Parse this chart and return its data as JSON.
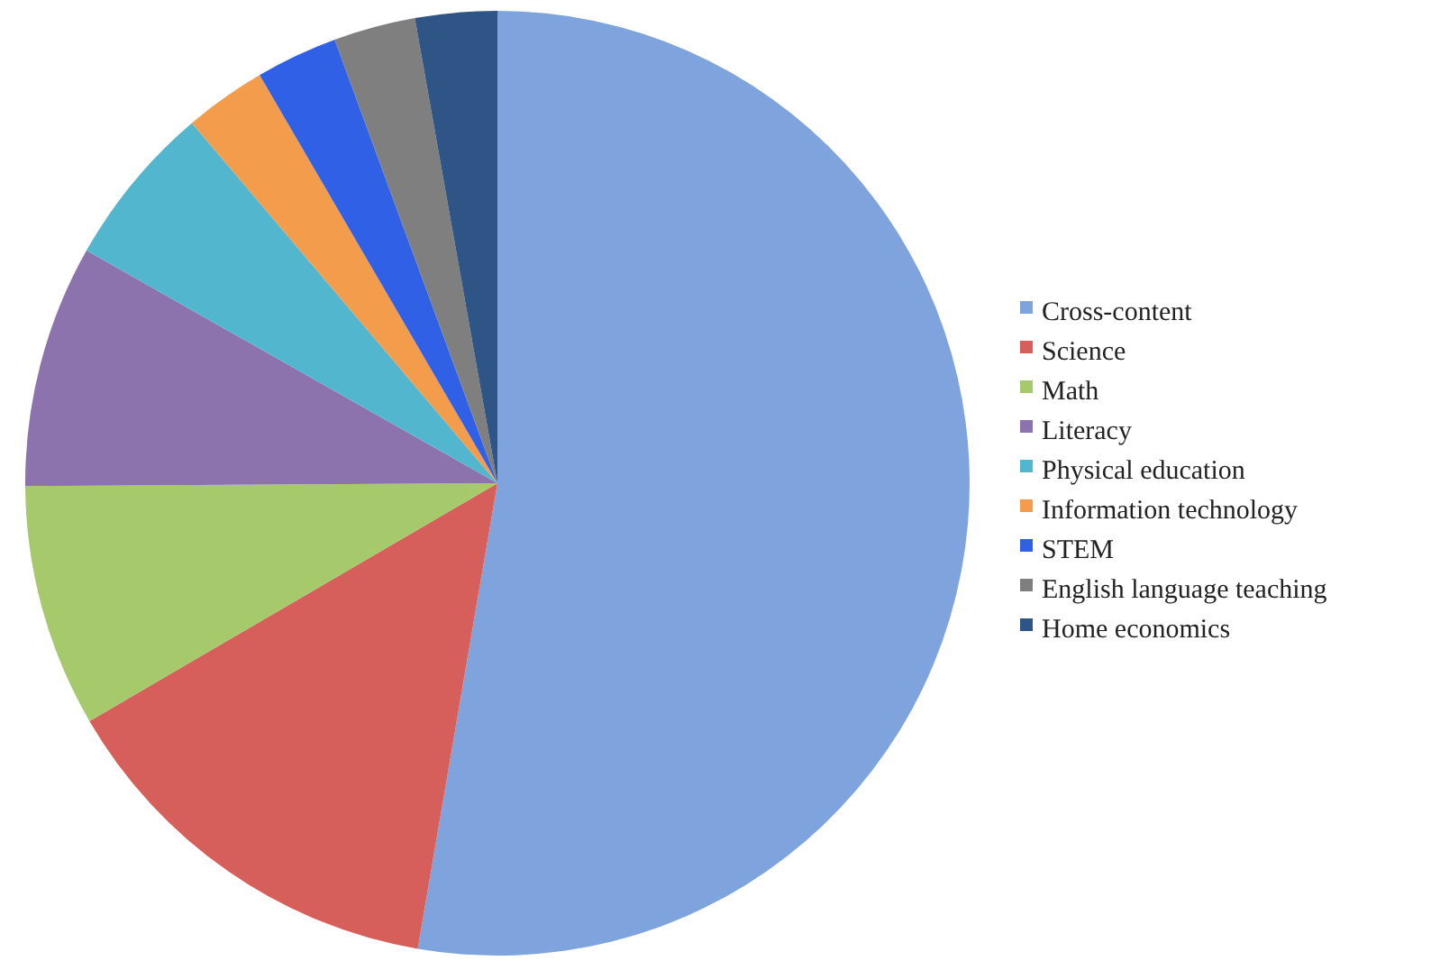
{
  "chart_data": {
    "type": "pie",
    "categories": [
      "Cross-content",
      "Science",
      "Math",
      "Literacy",
      "Physical education",
      "Information technology",
      "STEM",
      "English language teaching",
      "Home economics"
    ],
    "values": [
      52.7,
      13.9,
      8.3,
      8.3,
      5.6,
      2.8,
      2.8,
      2.8,
      2.8
    ],
    "colors": [
      "#7fa3dc",
      "#d65f5b",
      "#a6c96c",
      "#8d73ad",
      "#52b6cf",
      "#f39c4c",
      "#2f60e6",
      "#7f7f7f",
      "#2f5587"
    ],
    "legend": "right"
  }
}
